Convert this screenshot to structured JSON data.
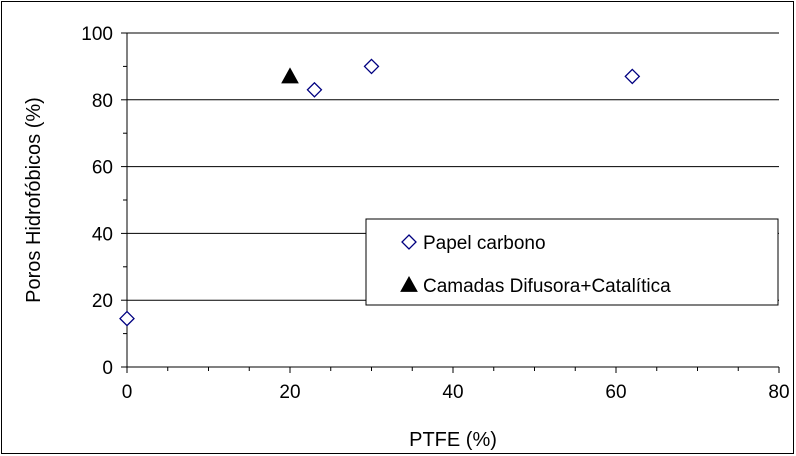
{
  "chart_data": {
    "type": "scatter",
    "xlabel": "PTFE (%)",
    "ylabel": "Poros Hidrofóbicos (%)",
    "xlim": [
      0,
      80
    ],
    "ylim": [
      0,
      100
    ],
    "x_ticks": [
      0,
      20,
      40,
      60,
      80
    ],
    "y_ticks": [
      0,
      20,
      40,
      60,
      80,
      100
    ],
    "x_tick_labels": [
      "0",
      "20",
      "40",
      "60",
      "80"
    ],
    "y_tick_labels": [
      "0",
      "20",
      "40",
      "60",
      "80",
      "100"
    ],
    "horizontal_grid": true,
    "legend_position": "right",
    "series": [
      {
        "name": "Papel carbono",
        "marker": "diamond-open",
        "color": "#000080",
        "points": [
          {
            "x": 0,
            "y": 14.5
          },
          {
            "x": 23,
            "y": 83
          },
          {
            "x": 30,
            "y": 90
          },
          {
            "x": 62,
            "y": 87
          }
        ]
      },
      {
        "name": "Camadas Difusora+Catalítica",
        "marker": "triangle-filled",
        "color": "#000000",
        "points": [
          {
            "x": 20,
            "y": 87
          }
        ]
      }
    ]
  }
}
